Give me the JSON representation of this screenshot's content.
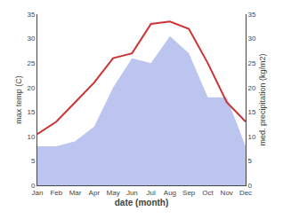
{
  "chart_data": {
    "type": "line",
    "categories": [
      "Jan",
      "Feb",
      "Mar",
      "Apr",
      "May",
      "Jun",
      "Jul",
      "Aug",
      "Sep",
      "Oct",
      "Nov",
      "Dec"
    ],
    "xlabel": "date (month)",
    "ylabel": "max temp (C)",
    "y2label": "med. precipitation (kg/m2)",
    "series": [
      {
        "type": "area",
        "axis": "y2",
        "color": "#bcc5ef",
        "values": [
          8.0,
          8.0,
          9.0,
          12.0,
          20.0,
          26.0,
          25.0,
          30.5,
          27.0,
          18.0,
          18.0,
          8.0
        ]
      },
      {
        "type": "line",
        "color": "#cc3333",
        "values": [
          10.5,
          13.0,
          17.0,
          21.0,
          26.0,
          27.0,
          33.0,
          33.5,
          32.0,
          25.0,
          17.0,
          13.0
        ]
      }
    ],
    "ylim": [
      0,
      35
    ],
    "yticks": [
      0,
      5,
      10,
      15,
      20,
      25,
      30,
      35
    ],
    "y2lim": [
      0,
      35
    ],
    "y2ticks": [
      0,
      5,
      10,
      15,
      20,
      25,
      30,
      35
    ],
    "grid": false
  }
}
